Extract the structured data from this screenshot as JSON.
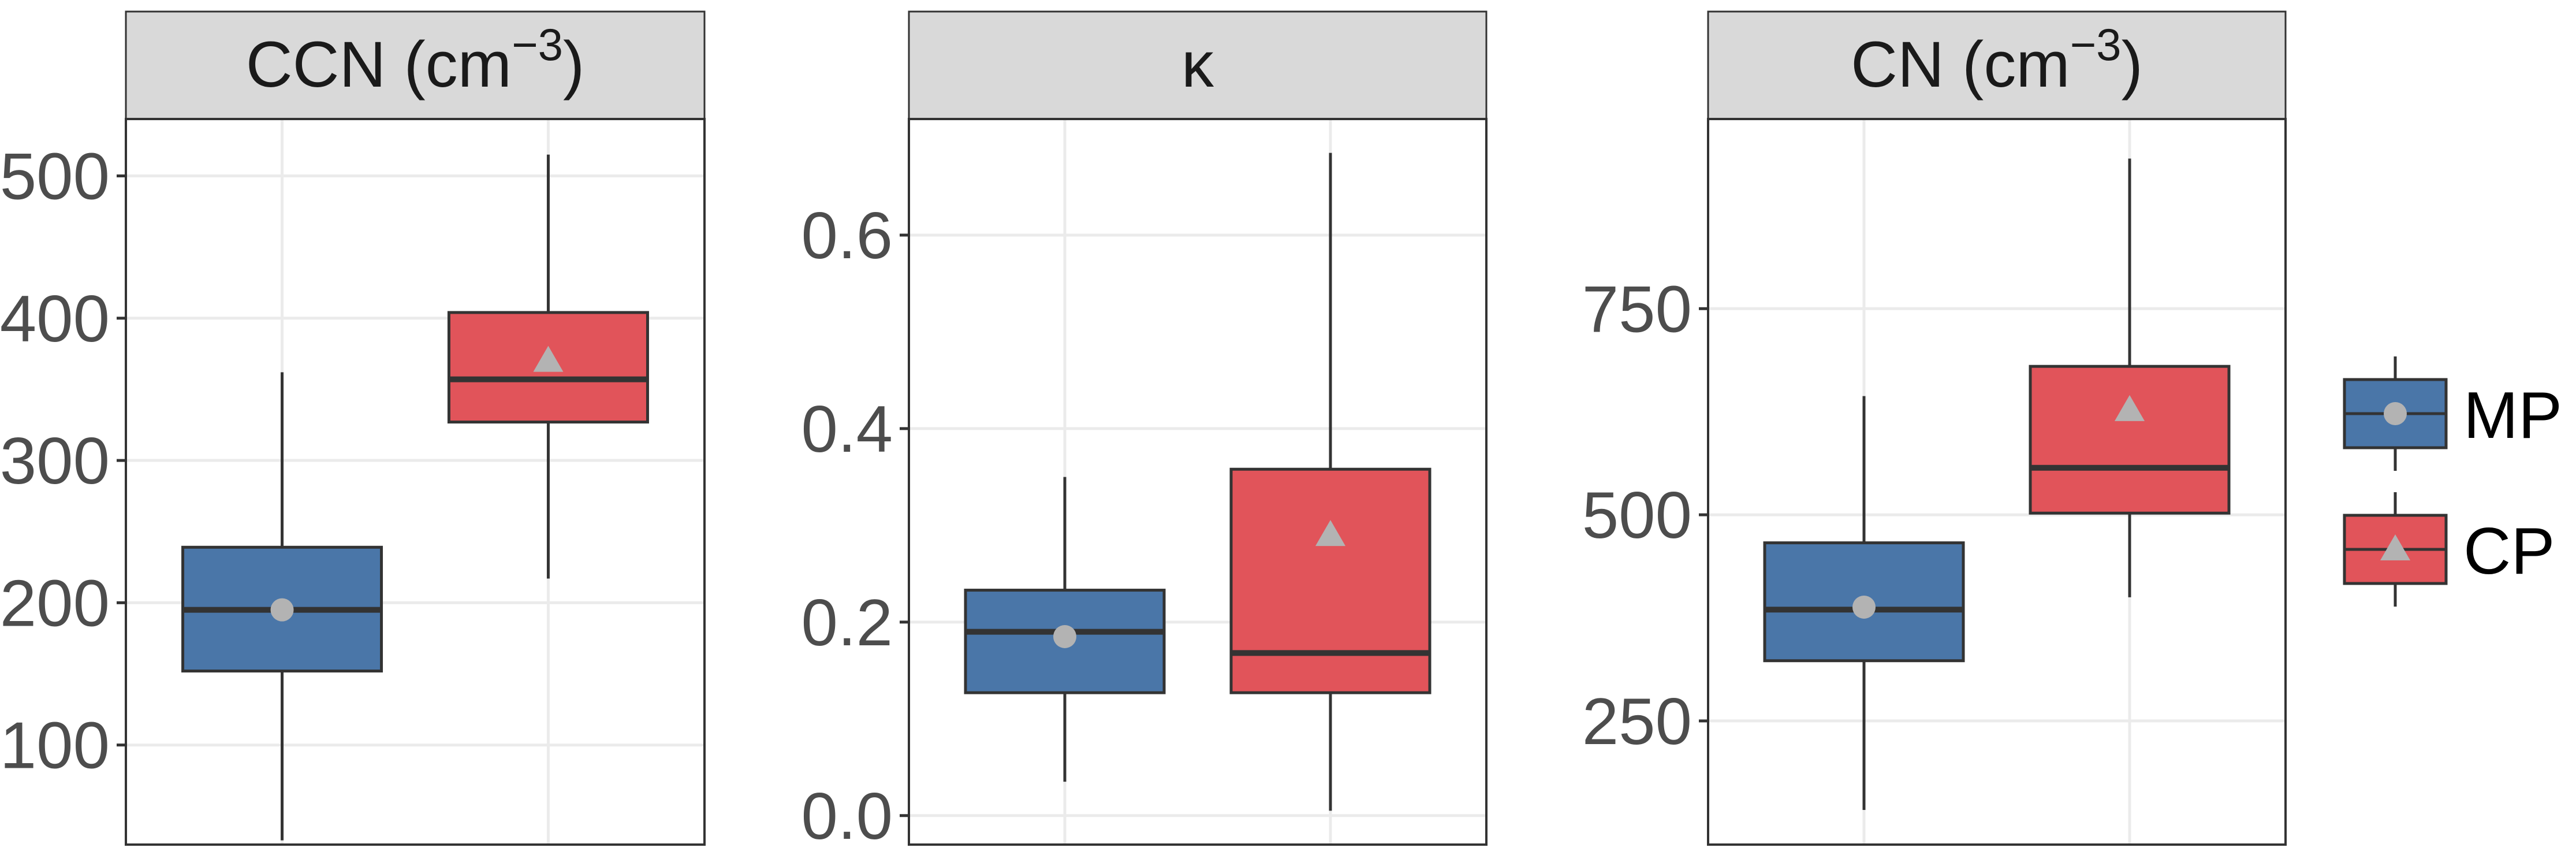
{
  "colors": {
    "MP": "#4a76a8",
    "CP": "#e1545a",
    "strip_bg": "#d9d9d9",
    "grid": "#ebebeb",
    "marker": "#b3b3b3",
    "line": "#333333",
    "tick_text": "#4d4d4d"
  },
  "legend": {
    "items": [
      {
        "label": "MP",
        "marker": "circle"
      },
      {
        "label": "CP",
        "marker": "triangle"
      }
    ],
    "position": "right"
  },
  "chart_data": [
    {
      "type": "box",
      "title": "CCN (cm",
      "title_sup": "−3",
      "title_suffix": ")",
      "ylim": [
        30,
        540
      ],
      "yticks": [
        100,
        200,
        300,
        400,
        500
      ],
      "ytick_labels": [
        "100",
        "200",
        "300",
        "400",
        "500"
      ],
      "grid": true,
      "series": [
        {
          "name": "MP",
          "min": 33,
          "q1": 152,
          "median": 195,
          "q3": 239,
          "max": 362,
          "mean": 195,
          "mean_marker": "circle"
        },
        {
          "name": "CP",
          "min": 217,
          "q1": 327,
          "median": 357,
          "q3": 404,
          "max": 515,
          "mean": 370,
          "mean_marker": "triangle"
        }
      ]
    },
    {
      "type": "box",
      "title": "κ",
      "title_sup": "",
      "title_suffix": "",
      "ylim": [
        -0.03,
        0.72
      ],
      "yticks": [
        0.0,
        0.2,
        0.4,
        0.6
      ],
      "ytick_labels": [
        "0.0",
        "0.2",
        "0.4",
        "0.6"
      ],
      "grid": true,
      "series": [
        {
          "name": "MP",
          "min": 0.035,
          "q1": 0.127,
          "median": 0.19,
          "q3": 0.233,
          "max": 0.35,
          "mean": 0.185,
          "mean_marker": "circle"
        },
        {
          "name": "CP",
          "min": 0.005,
          "q1": 0.127,
          "median": 0.168,
          "q3": 0.358,
          "max": 0.685,
          "mean": 0.29,
          "mean_marker": "triangle"
        }
      ]
    },
    {
      "type": "box",
      "title": "CN (cm",
      "title_sup": "−3",
      "title_suffix": ")",
      "ylim": [
        100,
        980
      ],
      "yticks": [
        250,
        500,
        750
      ],
      "ytick_labels": [
        "250",
        "500",
        "750"
      ],
      "grid": true,
      "series": [
        {
          "name": "MP",
          "min": 142,
          "q1": 323,
          "median": 385,
          "q3": 466,
          "max": 644,
          "mean": 388,
          "mean_marker": "circle"
        },
        {
          "name": "CP",
          "min": 400,
          "q1": 502,
          "median": 557,
          "q3": 680,
          "max": 932,
          "mean": 627,
          "mean_marker": "triangle"
        }
      ]
    }
  ]
}
